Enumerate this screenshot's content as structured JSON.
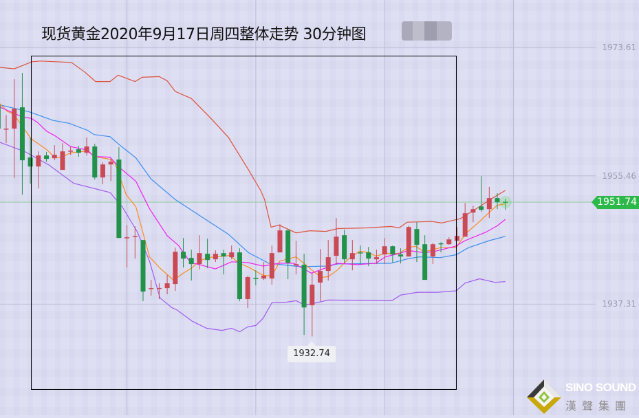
{
  "title": "现货黄金2020年9月17日周四整体走势 30分钟图",
  "logo": {
    "en": "SINO SOUND",
    "cn": "漢聲集團"
  },
  "colors": {
    "up": "#c94a55",
    "down": "#22914a",
    "upper_band": "#e0523a",
    "middle_band": "#3b8ff0",
    "lower_band": "#a05cf0",
    "ma_fast": "#ff8a1a",
    "ma_slow": "#f020f0",
    "price_line": "#2db84a",
    "grid": "#bcbcd6"
  },
  "chart_data": {
    "type": "candlestick",
    "title": "现货黄金2020年9月17日周四整体走势 30分钟图",
    "y_ticks": [
      "1973.61",
      "1955.46",
      "1937.31"
    ],
    "y_tick_values": [
      1973.61,
      1955.46,
      1937.31
    ],
    "ylim": [
      1921.6,
      1980.33
    ],
    "xlim": [
      1.23,
      80.6
    ],
    "x_grid_at": [
      17,
      33,
      49,
      65
    ],
    "grid": true,
    "current_price": 1951.74,
    "current_price_label": "1951.74",
    "low_annotation": {
      "candle": 40,
      "value": 1932.74,
      "label": "1932.74"
    },
    "candles_ohlc": [
      [
        1965.44,
        1966.7,
        1960.87,
        1962.14
      ],
      [
        1962.1,
        1964.08,
        1960.09,
        1962.14
      ],
      [
        1962.14,
        1969.14,
        1955.13,
        1964.96
      ],
      [
        1965.15,
        1970.02,
        1952.8,
        1957.66
      ],
      [
        1958.05,
        1960.87,
        1954.35,
        1956.78
      ],
      [
        1956.78,
        1958.92,
        1953.67,
        1958.34
      ],
      [
        1958.34,
        1958.83,
        1957.46,
        1957.86
      ],
      [
        1957.95,
        1959.8,
        1957.66,
        1958.44
      ],
      [
        1956.3,
        1960.09,
        1956.3,
        1958.92
      ],
      [
        1958.98,
        1959.61,
        1958.44,
        1959.02
      ],
      [
        1959.22,
        1959.7,
        1958.15,
        1958.73
      ],
      [
        1958.73,
        1960.87,
        1958.34,
        1959.61
      ],
      [
        1959.61,
        1960.0,
        1954.94,
        1955.23
      ],
      [
        1955.23,
        1957.37,
        1954.26,
        1957.07
      ],
      [
        1957.07,
        1957.95,
        1954.74,
        1957.46
      ],
      [
        1957.76,
        1959.51,
        1946.67,
        1946.67
      ],
      [
        1946.7,
        1948.51,
        1942.49,
        1946.77
      ],
      [
        1946.9,
        1948.32,
        1943.76,
        1946.96
      ],
      [
        1946.38,
        1946.38,
        1937.73,
        1939.09
      ],
      [
        1939.5,
        1940.75,
        1938.51,
        1939.58
      ],
      [
        1939.58,
        1940.26,
        1938.03,
        1939.6
      ],
      [
        1939.58,
        1941.43,
        1938.71,
        1940.26
      ],
      [
        1940.16,
        1945.3,
        1939.19,
        1944.73
      ],
      [
        1944.73,
        1946.67,
        1942.49,
        1943.76
      ],
      [
        1943.85,
        1945.02,
        1940.65,
        1942.98
      ],
      [
        1942.98,
        1947.06,
        1942.2,
        1944.53
      ],
      [
        1944.44,
        1946.57,
        1942.4,
        1943.56
      ],
      [
        1943.66,
        1944.92,
        1943.27,
        1944.44
      ],
      [
        1944.53,
        1945.02,
        1941.52,
        1944.05
      ],
      [
        1943.95,
        1945.6,
        1943.66,
        1944.63
      ],
      [
        1944.63,
        1945.21,
        1937.73,
        1938.03
      ],
      [
        1938.03,
        1941.33,
        1936.76,
        1941.14
      ],
      [
        1941.0,
        1942.1,
        1939.97,
        1940.94
      ],
      [
        1940.94,
        1943.27,
        1940.75,
        1941.33
      ],
      [
        1940.94,
        1945.6,
        1940.07,
        1944.53
      ],
      [
        1944.63,
        1948.61,
        1944.63,
        1947.74
      ],
      [
        1947.74,
        1947.93,
        1940.84,
        1943.17
      ],
      [
        1942.78,
        1946.28,
        1941.52,
        1942.98
      ],
      [
        1942.88,
        1944.44,
        1932.96,
        1936.85
      ],
      [
        1937.15,
        1941.72,
        1932.74,
        1940.07
      ],
      [
        1940.36,
        1945.11,
        1937.73,
        1942.01
      ],
      [
        1942.01,
        1946.38,
        1940.65,
        1943.95
      ],
      [
        1944.15,
        1949.49,
        1942.88,
        1946.86
      ],
      [
        1947.06,
        1947.83,
        1943.07,
        1943.66
      ],
      [
        1943.66,
        1946.38,
        1942.1,
        1944.53
      ],
      [
        1944.63,
        1945.6,
        1942.88,
        1944.6
      ],
      [
        1944.63,
        1945.41,
        1942.69,
        1943.76
      ],
      [
        1943.66,
        1945.02,
        1942.98,
        1943.95
      ],
      [
        1944.34,
        1946.67,
        1942.98,
        1945.5
      ],
      [
        1945.5,
        1945.6,
        1943.17,
        1944.34
      ],
      [
        1944.34,
        1945.21,
        1943.07,
        1944.05
      ],
      [
        1944.05,
        1948.42,
        1944.05,
        1948.22
      ],
      [
        1947.93,
        1948.9,
        1943.27,
        1945.7
      ],
      [
        1945.79,
        1947.06,
        1940.75,
        1940.75
      ],
      [
        1944.05,
        1945.99,
        1942.98,
        1945.79
      ],
      [
        1945.92,
        1946.08,
        1944.63,
        1945.89
      ],
      [
        1945.79,
        1946.77,
        1945.7,
        1946.47
      ],
      [
        1946.28,
        1948.22,
        1946.28,
        1946.96
      ],
      [
        1946.86,
        1951.62,
        1946.86,
        1950.17
      ],
      [
        1950.26,
        1951.23,
        1948.9,
        1950.75
      ],
      [
        1951.14,
        1955.42,
        1950.36,
        1950.65
      ],
      [
        1950.75,
        1953.9,
        1949.49,
        1952.31
      ],
      [
        1952.31,
        1953.0,
        1950.75,
        1951.72
      ],
      [
        1951.8,
        1952.21,
        1950.65,
        1951.74
      ]
    ],
    "lines": {
      "upper_band": [
        [
          1.2,
          1970.8
        ],
        [
          3.0,
          1970.6
        ],
        [
          5.2,
          1971.6
        ],
        [
          6.3,
          1971.7
        ],
        [
          10.1,
          1971.5
        ],
        [
          11.8,
          1970.1
        ],
        [
          13.1,
          1968.8
        ],
        [
          14.9,
          1968.8
        ],
        [
          15.9,
          1969.7
        ],
        [
          18.0,
          1968.8
        ],
        [
          18.9,
          1969.4
        ],
        [
          21.0,
          1969.5
        ],
        [
          22.0,
          1968.9
        ],
        [
          23.0,
          1967.4
        ],
        [
          25.0,
          1966.4
        ],
        [
          27.5,
          1963.5
        ],
        [
          29.6,
          1960.9
        ],
        [
          32.1,
          1956.3
        ],
        [
          33.6,
          1953.4
        ],
        [
          34.1,
          1952.1
        ],
        [
          34.9,
          1948.2
        ],
        [
          35.9,
          1948.5
        ],
        [
          38.0,
          1947.4
        ],
        [
          39.7,
          1947.7
        ],
        [
          41.7,
          1947.6
        ],
        [
          43.2,
          1948.0
        ],
        [
          46.7,
          1948.1
        ],
        [
          49.8,
          1948.3
        ],
        [
          50.8,
          1948.1
        ],
        [
          51.8,
          1948.9
        ],
        [
          54.9,
          1949.0
        ],
        [
          56.1,
          1948.8
        ],
        [
          58.4,
          1949.4
        ],
        [
          60.8,
          1951.1
        ],
        [
          62.1,
          1952.1
        ],
        [
          64.0,
          1953.4
        ]
      ],
      "middle_band": [
        [
          1.2,
          1965.5
        ],
        [
          4.9,
          1964.5
        ],
        [
          7.8,
          1963.3
        ],
        [
          9.8,
          1962.9
        ],
        [
          12.1,
          1961.9
        ],
        [
          12.9,
          1961.3
        ],
        [
          14.9,
          1961.0
        ],
        [
          16.0,
          1959.9
        ],
        [
          18.1,
          1958.0
        ],
        [
          20.0,
          1955.0
        ],
        [
          23.0,
          1952.1
        ],
        [
          26.5,
          1949.5
        ],
        [
          29.6,
          1947.2
        ],
        [
          32.1,
          1944.6
        ],
        [
          34.6,
          1943.1
        ],
        [
          38.6,
          1942.6
        ],
        [
          41.7,
          1942.7
        ],
        [
          43.2,
          1943.0
        ],
        [
          49.8,
          1943.1
        ],
        [
          51.8,
          1943.7
        ],
        [
          53.3,
          1944.0
        ],
        [
          55.9,
          1943.9
        ],
        [
          57.9,
          1944.3
        ],
        [
          59.4,
          1945.3
        ],
        [
          62.0,
          1946.3
        ],
        [
          64.0,
          1946.9
        ]
      ],
      "lower_band": [
        [
          1.2,
          1960.2
        ],
        [
          4.3,
          1958.9
        ],
        [
          7.3,
          1957.0
        ],
        [
          10.4,
          1954.4
        ],
        [
          14.9,
          1953.1
        ],
        [
          16.4,
          1951.1
        ],
        [
          18.3,
          1947.5
        ],
        [
          19.8,
          1943.4
        ],
        [
          21.1,
          1938.2
        ],
        [
          22.6,
          1936.8
        ],
        [
          23.2,
          1936.5
        ],
        [
          25.1,
          1934.9
        ],
        [
          26.9,
          1933.9
        ],
        [
          28.8,
          1933.6
        ],
        [
          30.0,
          1933.9
        ],
        [
          31.0,
          1933.4
        ],
        [
          32.0,
          1934.1
        ],
        [
          33.0,
          1934.3
        ],
        [
          33.9,
          1935.3
        ],
        [
          35.0,
          1937.5
        ],
        [
          36.8,
          1937.6
        ],
        [
          38.0,
          1937.8
        ],
        [
          39.1,
          1937.2
        ],
        [
          40.5,
          1937.5
        ],
        [
          42.0,
          1937.9
        ],
        [
          49.9,
          1937.8
        ],
        [
          51.0,
          1938.6
        ],
        [
          53.1,
          1939.0
        ],
        [
          55.6,
          1939.0
        ],
        [
          57.9,
          1939.2
        ],
        [
          59.0,
          1940.3
        ],
        [
          60.8,
          1940.9
        ],
        [
          62.7,
          1940.4
        ],
        [
          64.0,
          1940.5
        ]
      ],
      "ma_fast": [
        [
          1.2,
          1965.7
        ],
        [
          2.1,
          1964.6
        ],
        [
          2.9,
          1964.2
        ],
        [
          3.8,
          1962.8
        ],
        [
          5.1,
          1960.7
        ],
        [
          7.0,
          1959.2
        ],
        [
          8.1,
          1958.0
        ],
        [
          8.9,
          1958.1
        ],
        [
          10.0,
          1958.7
        ],
        [
          12.1,
          1959.0
        ],
        [
          12.9,
          1958.2
        ],
        [
          14.9,
          1957.8
        ],
        [
          15.5,
          1957.3
        ],
        [
          16.9,
          1952.8
        ],
        [
          18.1,
          1951.1
        ],
        [
          19.8,
          1944.0
        ],
        [
          21.1,
          1942.4
        ],
        [
          22.6,
          1940.9
        ],
        [
          22.8,
          1940.7
        ],
        [
          24.0,
          1941.7
        ],
        [
          25.0,
          1942.4
        ],
        [
          26.0,
          1943.4
        ],
        [
          27.0,
          1943.9
        ],
        [
          29.8,
          1944.2
        ],
        [
          30.9,
          1943.1
        ],
        [
          32.0,
          1942.6
        ],
        [
          33.9,
          1941.4
        ],
        [
          35.0,
          1941.3
        ],
        [
          36.0,
          1943.4
        ],
        [
          38.0,
          1944.0
        ],
        [
          39.9,
          1942.2
        ],
        [
          41.1,
          1941.1
        ],
        [
          42.0,
          1941.2
        ],
        [
          43.1,
          1942.1
        ],
        [
          44.5,
          1943.7
        ],
        [
          45.9,
          1944.8
        ],
        [
          47.1,
          1944.6
        ],
        [
          47.9,
          1944.1
        ],
        [
          49.1,
          1944.5
        ],
        [
          50.8,
          1944.5
        ],
        [
          51.9,
          1945.3
        ],
        [
          52.9,
          1945.5
        ],
        [
          53.9,
          1944.7
        ],
        [
          55.9,
          1945.3
        ],
        [
          57.9,
          1945.3
        ],
        [
          59.0,
          1947.2
        ],
        [
          60.8,
          1949.0
        ],
        [
          62.1,
          1950.4
        ],
        [
          63.0,
          1951.3
        ],
        [
          64.0,
          1951.5
        ]
      ],
      "ma_slow": [
        [
          1.2,
          1965.2
        ],
        [
          4.0,
          1963.8
        ],
        [
          5.1,
          1963.6
        ],
        [
          5.9,
          1963.0
        ],
        [
          7.0,
          1961.8
        ],
        [
          8.1,
          1961.1
        ],
        [
          10.0,
          1959.6
        ],
        [
          12.1,
          1959.1
        ],
        [
          12.9,
          1958.2
        ],
        [
          14.9,
          1958.1
        ],
        [
          16.0,
          1956.7
        ],
        [
          18.1,
          1954.7
        ],
        [
          19.8,
          1950.8
        ],
        [
          22.0,
          1947.0
        ],
        [
          22.6,
          1946.4
        ],
        [
          23.4,
          1945.6
        ],
        [
          24.9,
          1943.2
        ],
        [
          26.0,
          1942.9
        ],
        [
          28.0,
          1942.3
        ],
        [
          30.0,
          1943.3
        ],
        [
          32.0,
          1943.2
        ],
        [
          33.9,
          1942.7
        ],
        [
          36.0,
          1943.1
        ],
        [
          37.7,
          1943.1
        ],
        [
          39.9,
          1941.7
        ],
        [
          41.6,
          1942.4
        ],
        [
          43.1,
          1943.1
        ],
        [
          45.6,
          1942.9
        ],
        [
          47.9,
          1943.1
        ],
        [
          49.1,
          1944.0
        ],
        [
          50.9,
          1944.5
        ],
        [
          51.9,
          1944.9
        ],
        [
          53.9,
          1944.6
        ],
        [
          55.3,
          1944.8
        ],
        [
          57.8,
          1945.5
        ],
        [
          59.0,
          1946.3
        ],
        [
          61.6,
          1947.5
        ],
        [
          63.0,
          1948.4
        ],
        [
          64.0,
          1949.3
        ]
      ]
    }
  }
}
